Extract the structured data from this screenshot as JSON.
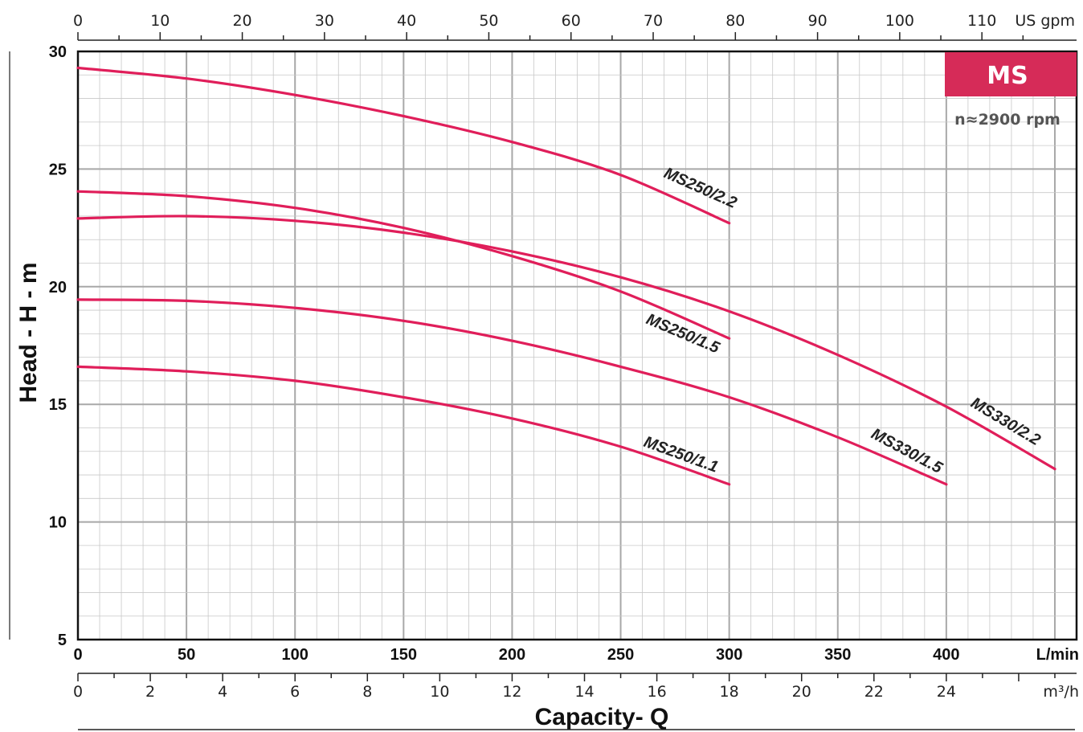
{
  "chart_data": {
    "type": "line",
    "title": "",
    "ylabel": "Head - H - m",
    "xlabel": "Capacity- Q",
    "ylim": [
      5,
      30
    ],
    "xlim_lmin": [
      0,
      460
    ],
    "y_ticks": [
      "30",
      "25",
      "20",
      "15",
      "10",
      "5"
    ],
    "x_ticks_lmin": [
      "0",
      "50",
      "100",
      "150",
      "200",
      "250",
      "300",
      "350",
      "400"
    ],
    "x_unit_lmin": "L/min",
    "x_ticks_gpm": [
      "0",
      "10",
      "20",
      "30",
      "40",
      "50",
      "60",
      "70",
      "80",
      "90",
      "100",
      "110"
    ],
    "x_unit_gpm": "US gpm",
    "x_ticks_m3h": [
      "0",
      "2",
      "4",
      "6",
      "8",
      "10",
      "12",
      "14",
      "16",
      "18",
      "20",
      "22",
      "24"
    ],
    "x_unit_m3h": "m³/h",
    "grid": true,
    "badge": "MS",
    "speed": "n≈2900 rpm",
    "curve_color": "#e01e5a",
    "badge_color": "#d62b58",
    "series": [
      {
        "name": "MS250/2.2",
        "x": [
          0,
          50,
          100,
          150,
          200,
          250,
          300
        ],
        "y": [
          29.3,
          28.85,
          28.15,
          27.25,
          26.15,
          24.75,
          22.7
        ]
      },
      {
        "name": "MS250/1.5",
        "x": [
          0,
          50,
          100,
          150,
          200,
          250,
          300
        ],
        "y": [
          24.05,
          23.85,
          23.35,
          22.5,
          21.3,
          19.8,
          17.8
        ]
      },
      {
        "name": "MS330/2.2",
        "x": [
          0,
          50,
          100,
          150,
          200,
          250,
          300,
          350,
          400,
          450
        ],
        "y": [
          22.9,
          23.0,
          22.8,
          22.3,
          21.5,
          20.4,
          18.95,
          17.1,
          14.9,
          12.25
        ]
      },
      {
        "name": "MS330/1.5",
        "x": [
          0,
          50,
          100,
          150,
          200,
          250,
          300,
          350,
          400
        ],
        "y": [
          19.45,
          19.4,
          19.1,
          18.55,
          17.7,
          16.6,
          15.3,
          13.6,
          11.6
        ]
      },
      {
        "name": "MS250/1.1",
        "x": [
          0,
          50,
          100,
          150,
          200,
          250,
          300
        ],
        "y": [
          16.6,
          16.4,
          16.0,
          15.3,
          14.4,
          13.2,
          11.6
        ]
      }
    ]
  }
}
